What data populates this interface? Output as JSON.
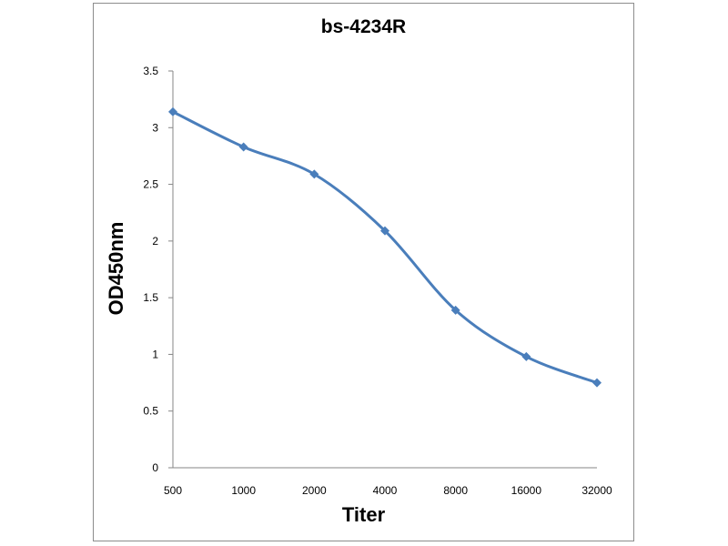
{
  "chart_data": {
    "type": "line",
    "title": "bs-4234R",
    "xlabel": "Titer",
    "ylabel": "OD450nm",
    "categories": [
      "500",
      "1000",
      "2000",
      "4000",
      "8000",
      "16000",
      "32000"
    ],
    "series": [
      {
        "values": [
          3.14,
          2.83,
          2.59,
          2.09,
          1.39,
          0.98,
          0.75
        ]
      }
    ],
    "ylim": [
      0,
      3.5
    ],
    "yticks": [
      "0",
      "0.5",
      "1",
      "1.5",
      "2",
      "2.5",
      "3",
      "3.5"
    ],
    "grid": false,
    "smooth": true,
    "colors": {
      "series": "#4a7ebb",
      "axis": "#868686"
    }
  }
}
